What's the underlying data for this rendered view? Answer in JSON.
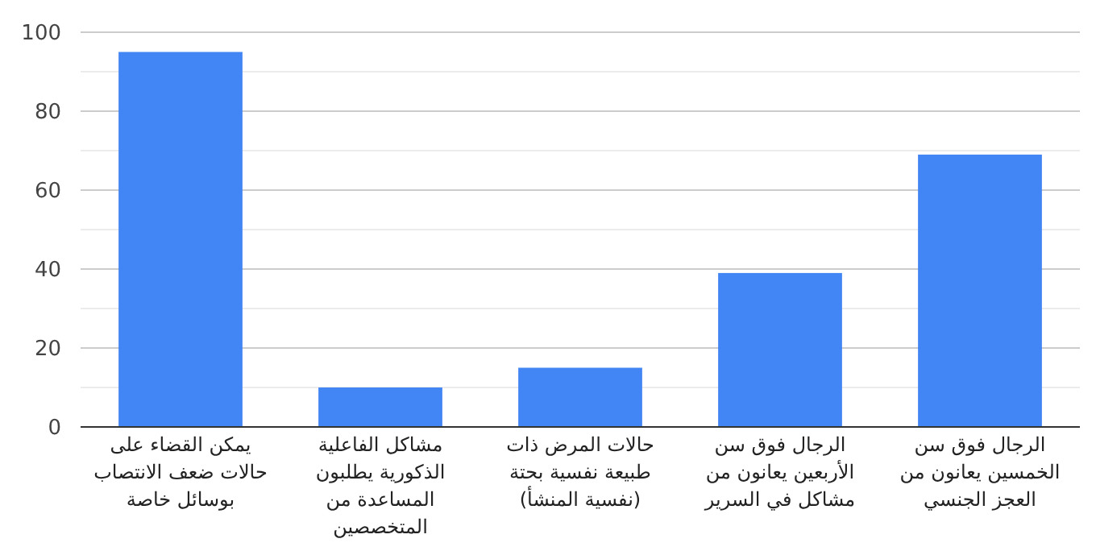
{
  "chart_data": {
    "type": "bar",
    "categories": [
      "يمكن القضاء على حالات ضعف الانتصاب بوسائل خاصة",
      "مشاكل الفاعلية الذكورية يطلبون المساعدة من المتخصصين",
      "حالات المرض ذات طبيعة نفسية بحتة (نفسية المنشأ)",
      "الرجال فوق سن الأربعين يعانون من مشاكل في السرير",
      "الرجال فوق سن الخمسين يعانون من العجز الجنسي"
    ],
    "values": [
      95,
      10,
      15,
      39,
      69
    ],
    "color": "#4285f4",
    "ylim": [
      0,
      100
    ],
    "yticks": [
      0,
      {
        "value": 10,
        "label": null
      },
      20,
      {
        "value": 30,
        "label": null
      },
      40,
      {
        "value": 50,
        "label": null
      },
      60,
      {
        "value": 70,
        "label": null
      },
      80,
      {
        "value": 90,
        "label": null
      },
      100
    ],
    "grid": "y"
  }
}
